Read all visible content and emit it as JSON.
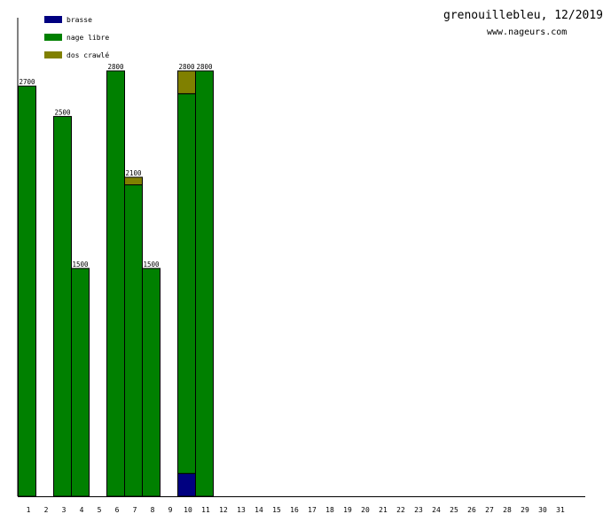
{
  "header": {
    "title": "grenouillebleu, 12/2019",
    "site": "www.nageurs.com"
  },
  "colors": {
    "brasse": "#000080",
    "nage libre": "#008000",
    "dos crawlé": "#808000",
    "axis": "#000000",
    "background": "#ffffff"
  },
  "chart_data": {
    "type": "bar",
    "stacked": true,
    "categories": [
      "1",
      "2",
      "3",
      "4",
      "5",
      "6",
      "7",
      "8",
      "9",
      "10",
      "11",
      "12",
      "13",
      "14",
      "15",
      "16",
      "17",
      "18",
      "19",
      "20",
      "21",
      "22",
      "23",
      "24",
      "25",
      "26",
      "27",
      "28",
      "29",
      "30",
      "31"
    ],
    "series": [
      {
        "name": "brasse",
        "values": [
          0,
          0,
          0,
          0,
          0,
          0,
          0,
          0,
          0,
          150,
          0,
          0,
          0,
          0,
          0,
          0,
          0,
          0,
          0,
          0,
          0,
          0,
          0,
          0,
          0,
          0,
          0,
          0,
          0,
          0,
          0
        ]
      },
      {
        "name": "nage libre",
        "values": [
          2700,
          0,
          2500,
          1500,
          0,
          2800,
          2050,
          1500,
          0,
          2500,
          2800,
          0,
          0,
          0,
          0,
          0,
          0,
          0,
          0,
          0,
          0,
          0,
          0,
          0,
          0,
          0,
          0,
          0,
          0,
          0,
          0
        ]
      },
      {
        "name": "dos crawlé",
        "values": [
          0,
          0,
          0,
          0,
          0,
          0,
          50,
          0,
          0,
          150,
          0,
          0,
          0,
          0,
          0,
          0,
          0,
          0,
          0,
          0,
          0,
          0,
          0,
          0,
          0,
          0,
          0,
          0,
          0,
          0,
          0
        ]
      }
    ],
    "totals": [
      2700,
      0,
      2500,
      1500,
      0,
      2800,
      2100,
      1500,
      0,
      2800,
      2800,
      0,
      0,
      0,
      0,
      0,
      0,
      0,
      0,
      0,
      0,
      0,
      0,
      0,
      0,
      0,
      0,
      0,
      0,
      0,
      0
    ],
    "ylim": [
      0,
      3150
    ],
    "legend": "top-left",
    "grid": false
  }
}
